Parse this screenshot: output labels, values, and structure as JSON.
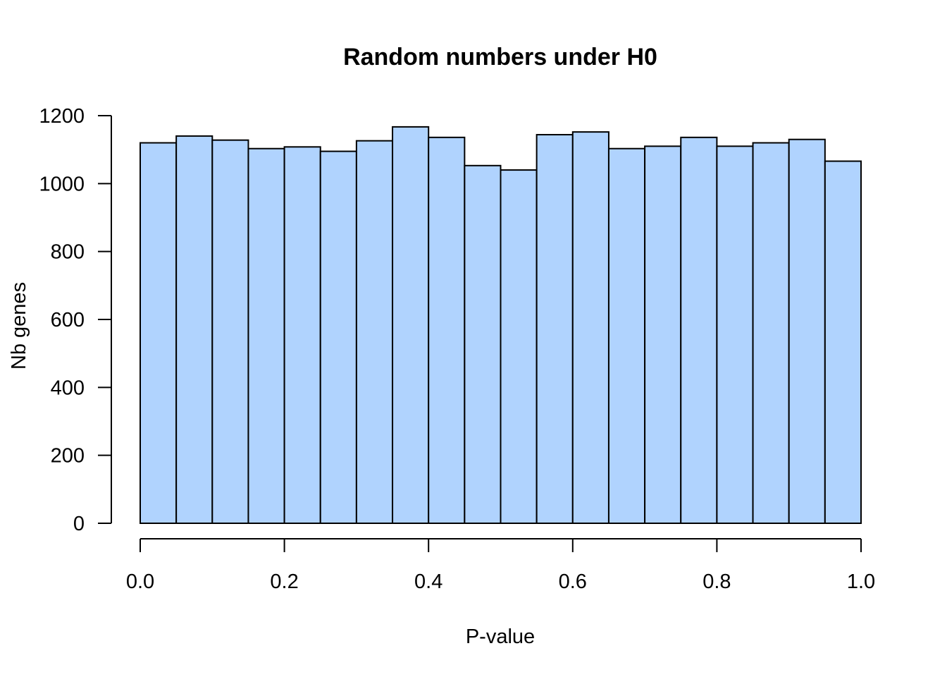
{
  "chart_data": {
    "type": "bar",
    "title": "Random numbers under H0",
    "xlabel": "P-value",
    "ylabel": "Nb genes",
    "bin_width": 0.05,
    "x": [
      0.0,
      0.05,
      0.1,
      0.15,
      0.2,
      0.25,
      0.3,
      0.35,
      0.4,
      0.45,
      0.5,
      0.55,
      0.6,
      0.65,
      0.7,
      0.75,
      0.8,
      0.85,
      0.9,
      0.95
    ],
    "values": [
      1120,
      1140,
      1128,
      1103,
      1108,
      1095,
      1126,
      1167,
      1136,
      1053,
      1040,
      1144,
      1152,
      1103,
      1110,
      1136,
      1110,
      1120,
      1130,
      1066
    ],
    "xlim": [
      0,
      1
    ],
    "ylim": [
      0,
      1200
    ],
    "x_ticks": [
      0.0,
      0.2,
      0.4,
      0.6,
      0.8,
      1.0
    ],
    "x_tick_labels": [
      "0.0",
      "0.2",
      "0.4",
      "0.6",
      "0.8",
      "1.0"
    ],
    "y_ticks": [
      0,
      200,
      400,
      600,
      800,
      1000,
      1200
    ],
    "y_tick_labels": [
      "0",
      "200",
      "400",
      "600",
      "800",
      "1000",
      "1200"
    ],
    "bar_color": "#b0d3fe",
    "edge_color": "#000000",
    "grid": false
  }
}
